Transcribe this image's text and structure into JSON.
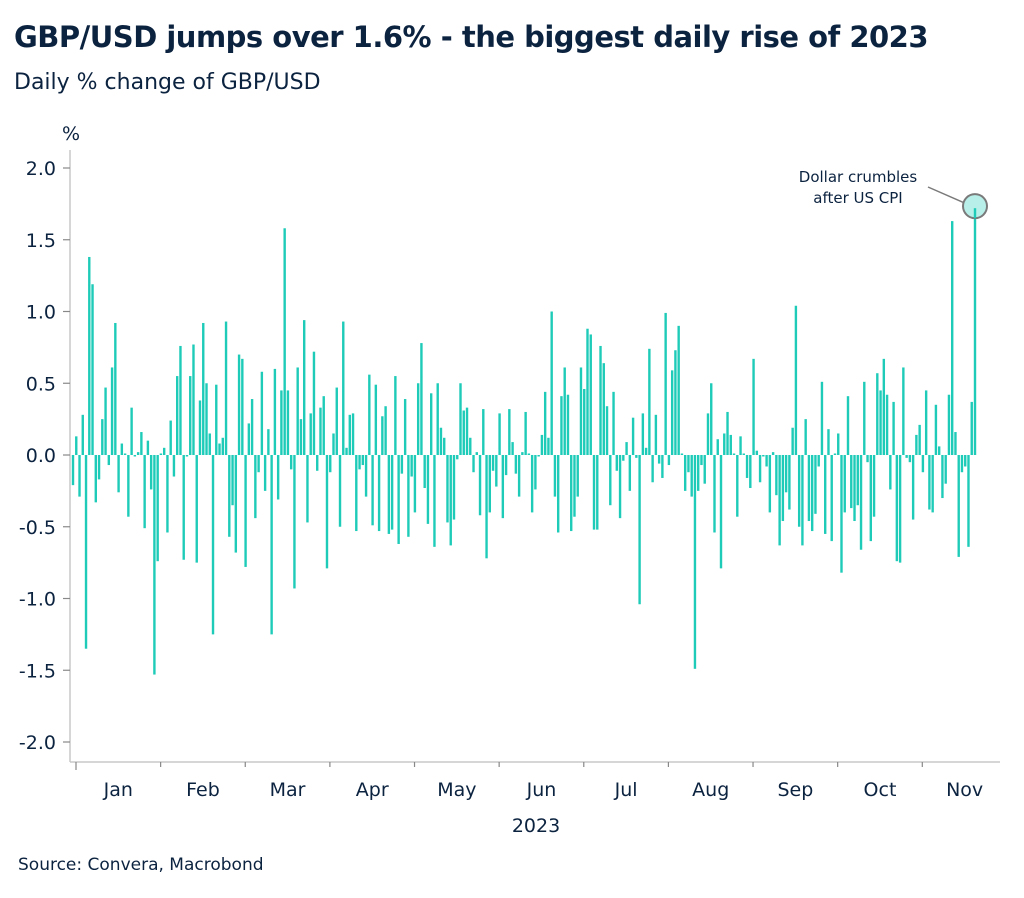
{
  "title": "GBP/USD jumps over 1.6% - the biggest daily rise of 2023",
  "subtitle": "Daily % change of GBP/USD",
  "source": "Source: Convera, Macrobond",
  "colors": {
    "bar": "#1ecbb8",
    "highlight_fill": "#b8efe8",
    "highlight_stroke": "#7a7a7a",
    "text": "#0c2340",
    "axis": "#c8c8c8"
  },
  "chart_data": {
    "type": "bar",
    "title": "GBP/USD jumps over 1.6% - the biggest daily rise of 2023",
    "subtitle": "Daily % change of GBP/USD",
    "ylabel": "%",
    "xlabel": "2023",
    "ylim": [
      -2.1,
      2.1
    ],
    "yticks": [
      "2.0",
      "1.5",
      "1.0",
      "0.5",
      "0.0",
      "-0.5",
      "-1.0",
      "-1.5",
      "-2.0"
    ],
    "ytick_values": [
      2.0,
      1.5,
      1.0,
      0.5,
      0.0,
      -0.5,
      -1.0,
      -1.5,
      -2.0
    ],
    "xticks": [
      "Jan",
      "Feb",
      "Mar",
      "Apr",
      "May",
      "Jun",
      "Jul",
      "Aug",
      "Sep",
      "Oct",
      "Nov"
    ],
    "grid": false,
    "annotation": {
      "text_lines": [
        "Dollar crumbles",
        "after US CPI"
      ],
      "target": "last"
    },
    "values": [
      -0.21,
      0.13,
      -0.29,
      0.28,
      -1.35,
      1.38,
      1.19,
      -0.33,
      -0.17,
      0.25,
      0.47,
      -0.07,
      0.61,
      0.92,
      -0.26,
      0.08,
      0.01,
      -0.43,
      0.33,
      -0.01,
      0.02,
      0.16,
      -0.51,
      0.1,
      -0.24,
      -1.53,
      -0.74,
      0.01,
      0.05,
      -0.54,
      0.24,
      -0.15,
      0.55,
      0.76,
      -0.73,
      -0.01,
      0.55,
      0.77,
      -0.75,
      0.38,
      0.92,
      0.5,
      0.15,
      -1.25,
      0.49,
      0.08,
      0.12,
      0.93,
      -0.57,
      -0.35,
      -0.68,
      0.7,
      0.67,
      -0.78,
      0.22,
      0.39,
      -0.44,
      -0.12,
      0.58,
      -0.25,
      0.18,
      -1.25,
      0.6,
      -0.31,
      0.45,
      1.58,
      0.45,
      -0.1,
      -0.93,
      0.61,
      0.25,
      0.94,
      -0.47,
      0.29,
      0.72,
      -0.11,
      0.33,
      0.41,
      -0.79,
      -0.12,
      0.15,
      0.47,
      -0.5,
      0.93,
      0.05,
      0.28,
      0.29,
      -0.53,
      -0.1,
      -0.07,
      -0.29,
      0.56,
      -0.49,
      0.49,
      -0.53,
      0.27,
      0.34,
      -0.55,
      -0.52,
      0.55,
      -0.62,
      -0.13,
      0.39,
      -0.57,
      -0.15,
      -0.4,
      0.5,
      0.78,
      -0.23,
      -0.48,
      0.43,
      -0.64,
      0.5,
      0.19,
      0.12,
      -0.47,
      -0.63,
      -0.45,
      -0.03,
      0.5,
      0.31,
      0.33,
      0.12,
      -0.12,
      0.02,
      -0.42,
      0.32,
      -0.72,
      -0.4,
      -0.11,
      -0.22,
      0.29,
      -0.44,
      -0.14,
      0.32,
      0.09,
      -0.13,
      -0.29,
      0.02,
      0.3,
      0.01,
      -0.4,
      -0.24,
      -0.01,
      0.14,
      0.44,
      0.12,
      1.0,
      -0.29,
      -0.54,
      0.41,
      0.61,
      0.42,
      -0.53,
      -0.43,
      -0.29,
      0.61,
      0.46,
      0.88,
      0.84,
      -0.52,
      -0.52,
      0.76,
      0.64,
      0.34,
      -0.35,
      0.44,
      -0.11,
      -0.44,
      -0.04,
      0.09,
      -0.25,
      0.26,
      -0.02,
      -1.04,
      0.29,
      0.05,
      0.74,
      -0.19,
      0.28,
      -0.06,
      -0.16,
      0.99,
      -0.07,
      0.59,
      0.73,
      0.9,
      0.01,
      -0.25,
      -0.12,
      -0.29,
      -1.49,
      -0.25,
      -0.07,
      -0.2,
      0.29,
      0.5,
      -0.54,
      0.11,
      -0.79,
      0.15,
      0.3,
      0.14,
      0.01,
      -0.43,
      0.13,
      0.01,
      -0.16,
      -0.23,
      0.67,
      0.03,
      -0.19,
      -0.01,
      -0.08,
      -0.4,
      0.02,
      -0.28,
      -0.63,
      -0.46,
      -0.26,
      -0.38,
      0.19,
      1.04,
      -0.5,
      -0.63,
      0.25,
      -0.46,
      -0.53,
      -0.41,
      -0.08,
      0.51,
      -0.55,
      0.18,
      -0.6,
      0.01,
      0.15,
      -0.82,
      -0.4,
      0.41,
      -0.37,
      -0.46,
      -0.35,
      -0.66,
      0.51,
      -0.05,
      -0.6,
      -0.43,
      0.57,
      0.45,
      0.67,
      0.42,
      -0.24,
      0.37,
      -0.74,
      -0.75,
      0.61,
      -0.02,
      -0.05,
      -0.45,
      0.14,
      0.21,
      -0.12,
      0.45,
      -0.38,
      -0.4,
      0.35,
      0.06,
      -0.3,
      -0.2,
      0.42,
      1.63,
      0.16,
      -0.71,
      -0.12,
      -0.08,
      -0.64,
      0.37,
      1.72
    ]
  }
}
